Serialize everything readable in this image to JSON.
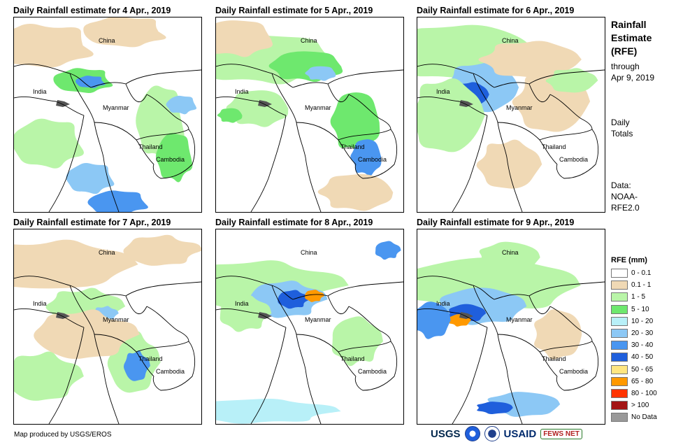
{
  "panels": [
    {
      "title": "Daily Rainfall estimate for 4 Apr., 2019",
      "labels": {
        "china": "China",
        "india": "India",
        "myanmar": "Myanmar",
        "thailand": "Thailand",
        "cambodia": "Cambodia"
      }
    },
    {
      "title": "Daily Rainfall estimate for 5 Apr., 2019",
      "labels": {
        "china": "China",
        "india": "India",
        "myanmar": "Myanmar",
        "thailand": "Thailand",
        "cambodia": "Cambodia"
      }
    },
    {
      "title": "Daily Rainfall estimate for 6 Apr., 2019",
      "labels": {
        "china": "China",
        "india": "India",
        "myanmar": "Myanmar",
        "thailand": "Thailand",
        "cambodia": "Cambodia"
      }
    },
    {
      "title": "Daily Rainfall estimate for 7 Apr., 2019",
      "labels": {
        "china": "China",
        "india": "India",
        "myanmar": "Myanmar",
        "thailand": "Thailand",
        "cambodia": "Cambodia"
      }
    },
    {
      "title": "Daily Rainfall estimate for 8 Apr., 2019",
      "labels": {
        "china": "China",
        "india": "India",
        "myanmar": "Myanmar",
        "thailand": "Thailand",
        "cambodia": "Cambodia"
      }
    },
    {
      "title": "Daily Rainfall estimate for 9 Apr., 2019",
      "labels": {
        "china": "China",
        "india": "India",
        "myanmar": "Myanmar",
        "thailand": "Thailand",
        "cambodia": "Cambodia"
      }
    }
  ],
  "sidebar": {
    "title_line1": "Rainfall",
    "title_line2": "Estimate",
    "title_line3": "(RFE)",
    "through_line1": "through",
    "through_line2": "Apr 9, 2019",
    "daily_line1": "Daily",
    "daily_line2": "Totals",
    "data_line1": "Data:",
    "data_line2": "NOAA-",
    "data_line3": "RFE2.0"
  },
  "legend": {
    "title": "RFE (mm)",
    "items": [
      {
        "label": "0 - 0.1",
        "color": "#ffffff"
      },
      {
        "label": "0.1 - 1",
        "color": "#f0d9b5"
      },
      {
        "label": "1 - 5",
        "color": "#b9f5a8"
      },
      {
        "label": "5 - 10",
        "color": "#6ee86e"
      },
      {
        "label": "10 - 20",
        "color": "#b8f0f8"
      },
      {
        "label": "20 - 30",
        "color": "#8cc8f5"
      },
      {
        "label": "30 - 40",
        "color": "#4a96f0"
      },
      {
        "label": "40 - 50",
        "color": "#1f5fdc"
      },
      {
        "label": "50 - 65",
        "color": "#ffe680"
      },
      {
        "label": "65 - 80",
        "color": "#ff9900"
      },
      {
        "label": "80 - 100",
        "color": "#ff3300"
      },
      {
        "label": "> 100",
        "color": "#a31414"
      },
      {
        "label": "No Data",
        "color": "#999999"
      }
    ]
  },
  "footer": {
    "credit": "Map produced by USGS/EROS"
  },
  "logos": {
    "usgs": "USGS",
    "usaid": "USAID",
    "fews": "FEWS NET"
  }
}
